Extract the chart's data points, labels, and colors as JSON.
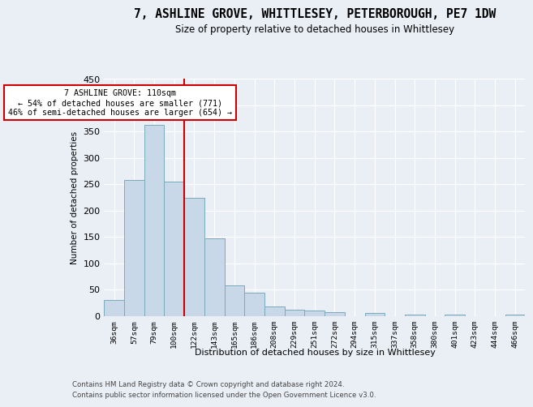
{
  "title": "7, ASHLINE GROVE, WHITTLESEY, PETERBOROUGH, PE7 1DW",
  "subtitle": "Size of property relative to detached houses in Whittlesey",
  "xlabel": "Distribution of detached houses by size in Whittlesey",
  "ylabel": "Number of detached properties",
  "bar_color": "#c8d8e8",
  "bar_edge_color": "#7aaabb",
  "categories": [
    "36sqm",
    "57sqm",
    "79sqm",
    "100sqm",
    "122sqm",
    "143sqm",
    "165sqm",
    "186sqm",
    "208sqm",
    "229sqm",
    "251sqm",
    "272sqm",
    "294sqm",
    "315sqm",
    "337sqm",
    "358sqm",
    "380sqm",
    "401sqm",
    "423sqm",
    "444sqm",
    "466sqm"
  ],
  "values": [
    30,
    258,
    363,
    255,
    224,
    147,
    57,
    44,
    17,
    11,
    10,
    7,
    0,
    6,
    0,
    3,
    0,
    3,
    0,
    0,
    3
  ],
  "vline_x": 3.5,
  "vline_color": "#cc0000",
  "annotation_text": "7 ASHLINE GROVE: 110sqm\n← 54% of detached houses are smaller (771)\n46% of semi-detached houses are larger (654) →",
  "annotation_box_color": "#ffffff",
  "annotation_box_edge": "#cc0000",
  "ylim": [
    0,
    450
  ],
  "yticks": [
    0,
    50,
    100,
    150,
    200,
    250,
    300,
    350,
    400,
    450
  ],
  "footer1": "Contains HM Land Registry data © Crown copyright and database right 2024.",
  "footer2": "Contains public sector information licensed under the Open Government Licence v3.0.",
  "background_color": "#eaeef5",
  "plot_bg_color": "#eaeef5"
}
